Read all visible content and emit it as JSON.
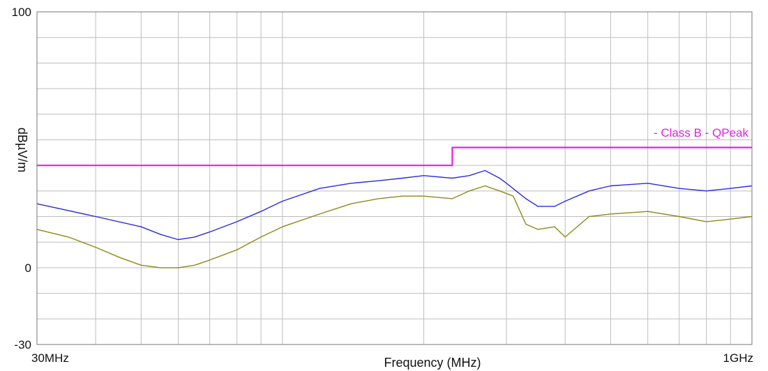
{
  "chart_data": {
    "type": "line",
    "title": "",
    "xlabel": "Frequency (MHz)",
    "ylabel": "dBµV/m",
    "x_scale": "log",
    "xlim": [
      30,
      1000
    ],
    "ylim": [
      -30,
      100
    ],
    "x_tick_labels": [
      {
        "value": 30,
        "label": "30MHz"
      },
      {
        "value": 1000,
        "label": "1GHz"
      }
    ],
    "y_tick_labels": [
      {
        "value": 100,
        "label": "100"
      },
      {
        "value": 0,
        "label": "0"
      },
      {
        "value": -30,
        "label": "-30"
      }
    ],
    "grid": true,
    "series": [
      {
        "name": "- Class B - QPeak",
        "style": "step",
        "color": "#e61ee6",
        "x": [
          30,
          230,
          230,
          1000
        ],
        "y": [
          40,
          40,
          47,
          47
        ]
      },
      {
        "color": "#2a2ae0",
        "x": [
          30,
          40,
          50,
          55,
          60,
          65,
          70,
          80,
          90,
          100,
          120,
          140,
          160,
          180,
          200,
          230,
          250,
          270,
          290,
          300,
          330,
          350,
          380,
          400,
          450,
          500,
          600,
          700,
          800,
          900,
          1000
        ],
        "y": [
          25,
          20,
          16,
          13,
          11,
          12,
          14,
          18,
          22,
          26,
          31,
          33,
          34,
          35,
          36,
          35,
          36,
          38,
          35,
          33,
          27,
          24,
          24,
          26,
          30,
          32,
          33,
          31,
          30,
          31,
          32
        ]
      },
      {
        "color": "#8a8a1a",
        "x": [
          30,
          35,
          40,
          45,
          50,
          55,
          60,
          65,
          70,
          80,
          90,
          100,
          120,
          140,
          160,
          180,
          200,
          230,
          250,
          270,
          290,
          310,
          330,
          350,
          380,
          400,
          450,
          500,
          600,
          700,
          800,
          900,
          1000
        ],
        "y": [
          15,
          12,
          8,
          4,
          1,
          0,
          0,
          1,
          3,
          7,
          12,
          16,
          21,
          25,
          27,
          28,
          28,
          27,
          30,
          32,
          30,
          28,
          17,
          15,
          16,
          12,
          20,
          21,
          22,
          20,
          18,
          19,
          20
        ]
      }
    ]
  }
}
